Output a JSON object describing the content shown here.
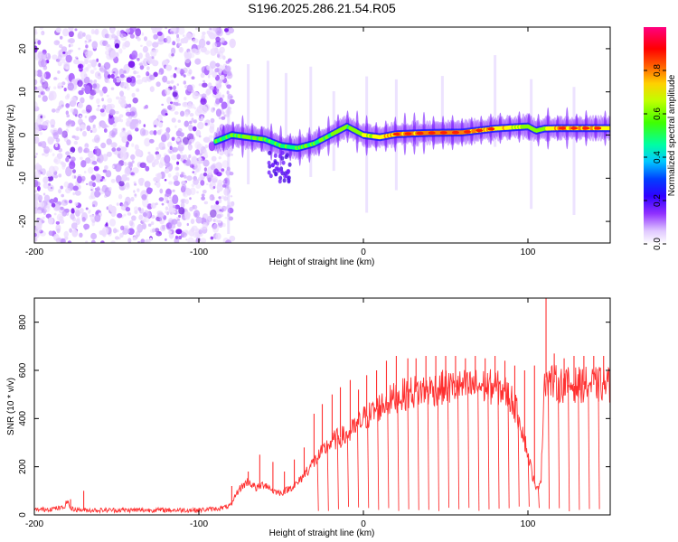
{
  "title": "S196.2025.286.21.54.R05",
  "chart_data": [
    {
      "type": "heatmap",
      "name": "spectrogram",
      "xlabel": "Height of straight line (km)",
      "ylabel": "Frequency (Hz)",
      "xlim": [
        -200,
        150
      ],
      "ylim": [
        -25,
        25
      ],
      "x_ticks": [
        -200,
        -100,
        0,
        100
      ],
      "y_ticks": [
        -20,
        -10,
        0,
        10,
        20
      ],
      "colorbar": {
        "label": "Normalized spectral amplitude",
        "range": [
          0,
          1
        ],
        "ticks": [
          0.0,
          0.2,
          0.4,
          0.6,
          0.8
        ],
        "tick_labels": [
          "0.0",
          "0.2",
          "0.4",
          "0.6",
          "0.8"
        ],
        "colors": [
          "#e8d8ff",
          "#c890ff",
          "#7a20ff",
          "#0000ff",
          "#00c8ff",
          "#00ff80",
          "#80ff00",
          "#ffff00",
          "#ff8000",
          "#ff0000",
          "#ff0080"
        ]
      },
      "noise_region": {
        "x_range": [
          -200,
          -85
        ],
        "freq_range": [
          -25,
          25
        ]
      },
      "ridge": {
        "x": [
          -90,
          -80,
          -70,
          -60,
          -50,
          -40,
          -30,
          -20,
          -15,
          -10,
          0,
          10,
          20,
          40,
          60,
          80,
          100,
          105,
          110,
          120,
          140,
          150
        ],
        "freq": [
          -1.5,
          0,
          -0.5,
          -1,
          -2.5,
          -3,
          -2,
          0,
          1,
          2,
          0,
          -0.5,
          0.2,
          0.5,
          0.6,
          1.5,
          2,
          1,
          1.5,
          1.6,
          1.6,
          1.6
        ],
        "intensity": [
          0.3,
          0.4,
          0.45,
          0.4,
          0.35,
          0.35,
          0.35,
          0.45,
          0.5,
          0.45,
          0.6,
          0.7,
          0.85,
          0.9,
          0.88,
          0.8,
          0.5,
          0.45,
          0.6,
          0.8,
          0.85,
          0.7
        ]
      }
    },
    {
      "type": "line",
      "name": "snr",
      "xlabel": "Height of straight line (km)",
      "ylabel": "SNR (10 * v/v)",
      "xlim": [
        -200,
        150
      ],
      "ylim": [
        0,
        900
      ],
      "x_ticks": [
        -200,
        -100,
        0,
        100
      ],
      "y_ticks": [
        0,
        200,
        400,
        600,
        800
      ],
      "color": "#ff3030",
      "series": [
        {
          "name": "SNR",
          "x": [
            -200,
            -190,
            -182,
            -180,
            -178,
            -170,
            -160,
            -150,
            -140,
            -130,
            -120,
            -110,
            -100,
            -90,
            -85,
            -80,
            -78,
            -75,
            -70,
            -65,
            -60,
            -55,
            -50,
            -45,
            -40,
            -35,
            -30,
            -25,
            -20,
            -15,
            -10,
            -5,
            0,
            5,
            10,
            15,
            20,
            25,
            30,
            40,
            50,
            60,
            70,
            80,
            85,
            90,
            95,
            100,
            105,
            108,
            110,
            112,
            120,
            130,
            140,
            150
          ],
          "y": [
            20,
            25,
            30,
            60,
            25,
            20,
            20,
            20,
            20,
            20,
            20,
            20,
            20,
            25,
            30,
            40,
            80,
            110,
            140,
            110,
            130,
            100,
            90,
            110,
            130,
            180,
            220,
            260,
            300,
            320,
            330,
            360,
            400,
            420,
            450,
            470,
            490,
            500,
            510,
            520,
            530,
            530,
            535,
            530,
            520,
            480,
            400,
            250,
            100,
            150,
            580,
            560,
            540,
            540,
            540,
            540
          ]
        }
      ],
      "spikes": {
        "x": [
          -178,
          -170,
          -80,
          -70,
          -63,
          -55,
          -48,
          -42,
          -36,
          -30,
          -25,
          -19,
          -14,
          -8,
          -3,
          2,
          8,
          14,
          20,
          27,
          32,
          38,
          44,
          50,
          56,
          62,
          68,
          74,
          80,
          86,
          92,
          98,
          104,
          111,
          116,
          122,
          128,
          134,
          140,
          146
        ],
        "y": [
          65,
          100,
          120,
          180,
          250,
          220,
          180,
          230,
          280,
          420,
          460,
          500,
          530,
          560,
          520,
          580,
          600,
          640,
          660,
          650,
          650,
          660,
          660,
          660,
          660,
          650,
          660,
          650,
          660,
          640,
          620,
          600,
          620,
          910,
          670,
          650,
          660,
          660,
          660,
          660
        ]
      }
    }
  ]
}
